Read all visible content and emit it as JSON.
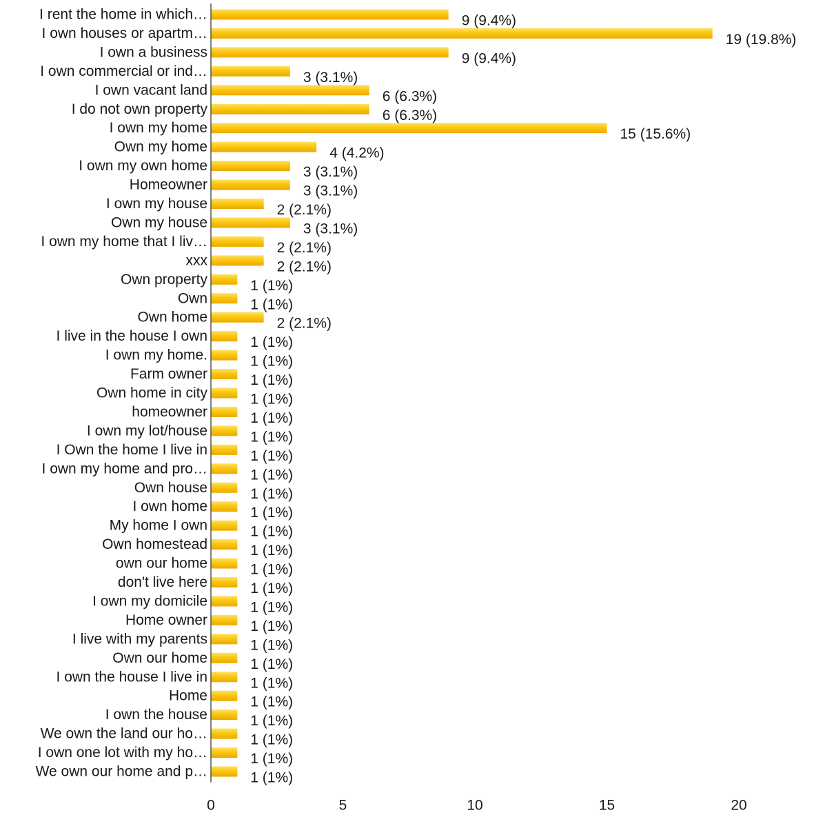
{
  "chart_data": {
    "type": "bar",
    "orientation": "horizontal",
    "title": "",
    "xlabel": "",
    "ylabel": "",
    "xlim": [
      0,
      20
    ],
    "xticks": [
      0,
      5,
      10,
      15,
      20
    ],
    "grid": false,
    "legend": "none",
    "bar_color": "#f5b800",
    "bar_highlight_color": "#ffe066",
    "categories": [
      "I rent the home in which…",
      "I own houses or apartm…",
      "I own a business",
      "I own commercial or ind…",
      "I own vacant land",
      "I do not own property",
      "I own my home",
      "Own my home",
      "I own my own home",
      "Homeowner",
      "I own my house",
      "Own my house",
      "I own my home that I liv…",
      "xxx",
      "Own property",
      "Own",
      "Own home",
      "I live in the house I own",
      "I own my home.",
      "Farm owner",
      "Own home in city",
      "homeowner",
      "I own my lot/house",
      "I Own the home I live in",
      "I own my home and pro…",
      "Own house",
      "I own home",
      "My home I own",
      "Own homestead",
      "own our home",
      "don't live here",
      "I own my domicile",
      "Home owner",
      "I live with my parents",
      "Own our home",
      "I own the house I live in",
      "Home",
      "I own the house",
      "We own the land our ho…",
      "I own one lot with my ho…",
      "We own our home and p…"
    ],
    "values": [
      9,
      19,
      9,
      3,
      6,
      6,
      15,
      4,
      3,
      3,
      2,
      3,
      2,
      2,
      1,
      1,
      2,
      1,
      1,
      1,
      1,
      1,
      1,
      1,
      1,
      1,
      1,
      1,
      1,
      1,
      1,
      1,
      1,
      1,
      1,
      1,
      1,
      1,
      1,
      1,
      1
    ],
    "data_labels": [
      "9 (9.4%)",
      "19 (19.8%)",
      "9 (9.4%)",
      "3 (3.1%)",
      "6 (6.3%)",
      "6 (6.3%)",
      "15 (15.6%)",
      "4 (4.2%)",
      "3 (3.1%)",
      "3 (3.1%)",
      "2 (2.1%)",
      "3 (3.1%)",
      "2 (2.1%)",
      "2 (2.1%)",
      "1 (1%)",
      "1 (1%)",
      "2 (2.1%)",
      "1 (1%)",
      "1 (1%)",
      "1 (1%)",
      "1 (1%)",
      "1 (1%)",
      "1 (1%)",
      "1 (1%)",
      "1 (1%)",
      "1 (1%)",
      "1 (1%)",
      "1 (1%)",
      "1 (1%)",
      "1 (1%)",
      "1 (1%)",
      "1 (1%)",
      "1 (1%)",
      "1 (1%)",
      "1 (1%)",
      "1 (1%)",
      "1 (1%)",
      "1 (1%)",
      "1 (1%)",
      "1 (1%)",
      "1 (1%)"
    ]
  }
}
